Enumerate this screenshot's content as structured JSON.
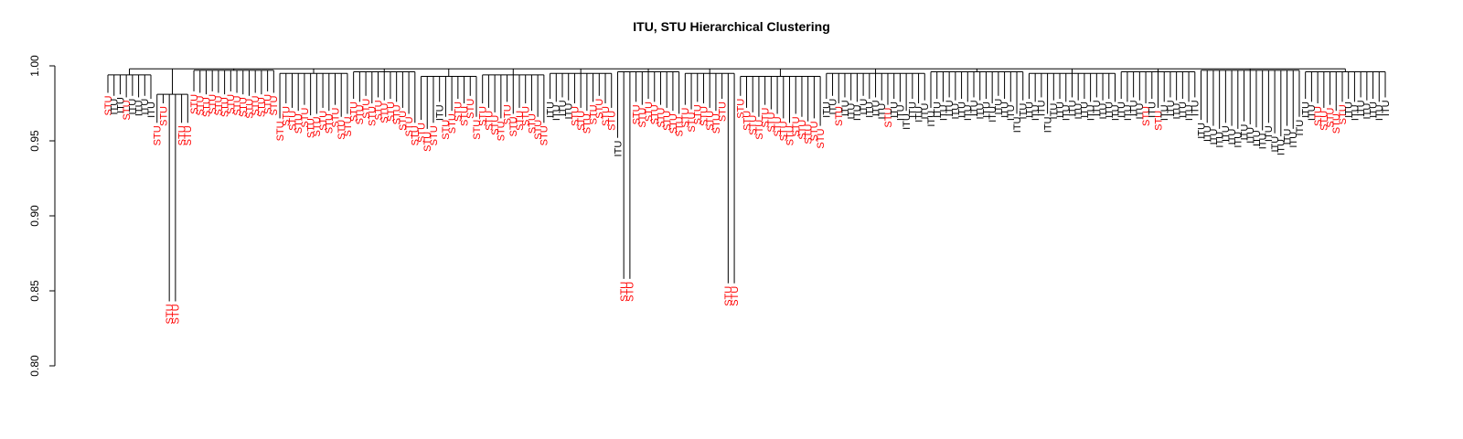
{
  "chart_data": {
    "type": "dendrogram",
    "title": "ITU, STU Hierarchical Clustering",
    "xlabel": "",
    "ylabel": "",
    "ylim": [
      0.8,
      1.0
    ],
    "y_ticks": [
      0.8,
      0.85,
      0.9,
      0.95,
      1.0
    ],
    "y_tick_labels": [
      "0.80",
      "0.85",
      "0.90",
      "0.95",
      "1.00"
    ],
    "root_height": 0.998,
    "label_colors": {
      "STU": "#ff0000",
      "ITU": "#000000"
    },
    "groups": [
      {
        "height": 0.994,
        "leaves": [
          [
            "STU",
            0.982
          ],
          [
            "ITU",
            0.98
          ],
          [
            "ITU",
            0.981
          ],
          [
            "STU",
            0.979
          ],
          [
            "ITU",
            0.98
          ],
          [
            "ITU",
            0.979
          ],
          [
            "ITU",
            0.98
          ],
          [
            "ITU",
            0.978
          ]
        ]
      },
      {
        "height": 0.981,
        "leaves": [
          [
            "STU",
            0.962
          ],
          [
            "STU",
            0.975
          ],
          [
            "STU",
            0.843
          ],
          [
            "STU",
            0.843
          ],
          [
            "STU",
            0.962
          ],
          [
            "STU",
            0.962
          ]
        ]
      },
      {
        "height": 0.997,
        "leaves": [
          [
            "STU",
            0.983
          ],
          [
            "STU",
            0.982
          ],
          [
            "STU",
            0.981
          ],
          [
            "STU",
            0.983
          ],
          [
            "STU",
            0.982
          ],
          [
            "STU",
            0.981
          ],
          [
            "STU",
            0.983
          ],
          [
            "STU",
            0.982
          ],
          [
            "STU",
            0.981
          ],
          [
            "STU",
            0.98
          ],
          [
            "STU",
            0.982
          ],
          [
            "STU",
            0.981
          ],
          [
            "STU",
            0.983
          ],
          [
            "STU",
            0.982
          ]
        ]
      },
      {
        "height": 0.995,
        "leaves": [
          [
            "STU",
            0.965
          ],
          [
            "STU",
            0.975
          ],
          [
            "STU",
            0.972
          ],
          [
            "STU",
            0.97
          ],
          [
            "STU",
            0.974
          ],
          [
            "STU",
            0.967
          ],
          [
            "STU",
            0.968
          ],
          [
            "STU",
            0.972
          ],
          [
            "STU",
            0.97
          ],
          [
            "STU",
            0.974
          ],
          [
            "STU",
            0.966
          ],
          [
            "STU",
            0.968
          ]
        ]
      },
      {
        "height": 0.996,
        "leaves": [
          [
            "STU",
            0.978
          ],
          [
            "STU",
            0.976
          ],
          [
            "STU",
            0.98
          ],
          [
            "STU",
            0.975
          ],
          [
            "STU",
            0.979
          ],
          [
            "STU",
            0.977
          ],
          [
            "STU",
            0.978
          ],
          [
            "STU",
            0.976
          ],
          [
            "STU",
            0.972
          ],
          [
            "STU",
            0.968
          ],
          [
            "STU",
            0.962
          ]
        ]
      },
      {
        "height": 0.993,
        "leaves": [
          [
            "STU",
            0.964
          ],
          [
            "STU",
            0.958
          ],
          [
            "STU",
            0.962
          ],
          [
            "ITU",
            0.976
          ],
          [
            "STU",
            0.966
          ],
          [
            "STU",
            0.97
          ],
          [
            "STU",
            0.978
          ],
          [
            "STU",
            0.975
          ],
          [
            "STU",
            0.98
          ],
          [
            "STU",
            0.966
          ]
        ]
      },
      {
        "height": 0.994,
        "leaves": [
          [
            "STU",
            0.975
          ],
          [
            "STU",
            0.972
          ],
          [
            "STU",
            0.969
          ],
          [
            "STU",
            0.965
          ],
          [
            "STU",
            0.976
          ],
          [
            "STU",
            0.968
          ],
          [
            "STU",
            0.972
          ],
          [
            "STU",
            0.975
          ],
          [
            "STU",
            0.97
          ],
          [
            "STU",
            0.966
          ],
          [
            "STU",
            0.962
          ]
        ]
      },
      {
        "height": 0.995,
        "leaves": [
          [
            "ITU",
            0.978
          ],
          [
            "ITU",
            0.976
          ],
          [
            "ITU",
            0.979
          ],
          [
            "ITU",
            0.977
          ],
          [
            "STU",
            0.975
          ],
          [
            "STU",
            0.972
          ],
          [
            "STU",
            0.97
          ],
          [
            "STU",
            0.976
          ],
          [
            "STU",
            0.98
          ],
          [
            "STU",
            0.975
          ],
          [
            "STU",
            0.972
          ]
        ]
      },
      {
        "height": 0.996,
        "leaves": [
          [
            "ITU",
            0.952
          ],
          [
            "STU",
            0.858
          ],
          [
            "STU",
            0.858
          ],
          [
            "STU",
            0.976
          ],
          [
            "STU",
            0.974
          ],
          [
            "STU",
            0.978
          ],
          [
            "STU",
            0.976
          ],
          [
            "STU",
            0.974
          ],
          [
            "STU",
            0.972
          ],
          [
            "STU",
            0.97
          ],
          [
            "STU",
            0.968
          ]
        ]
      },
      {
        "height": 0.995,
        "leaves": [
          [
            "STU",
            0.974
          ],
          [
            "STU",
            0.971
          ],
          [
            "STU",
            0.976
          ],
          [
            "STU",
            0.975
          ],
          [
            "STU",
            0.972
          ],
          [
            "STU",
            0.97
          ],
          [
            "STU",
            0.978
          ],
          [
            "STU",
            0.855
          ],
          [
            "STU",
            0.855
          ]
        ]
      },
      {
        "height": 0.993,
        "leaves": [
          [
            "STU",
            0.98
          ],
          [
            "STU",
            0.972
          ],
          [
            "STU",
            0.969
          ],
          [
            "STU",
            0.966
          ],
          [
            "STU",
            0.974
          ],
          [
            "STU",
            0.971
          ],
          [
            "STU",
            0.968
          ],
          [
            "STU",
            0.965
          ],
          [
            "STU",
            0.962
          ],
          [
            "STU",
            0.968
          ],
          [
            "STU",
            0.966
          ],
          [
            "STU",
            0.963
          ],
          [
            "STU",
            0.965
          ],
          [
            "STU",
            0.96
          ]
        ]
      },
      {
        "height": 0.995,
        "leaves": [
          [
            "ITU",
            0.978
          ],
          [
            "ITU",
            0.98
          ],
          [
            "STU",
            0.975
          ],
          [
            "ITU",
            0.979
          ],
          [
            "ITU",
            0.977
          ],
          [
            "ITU",
            0.976
          ],
          [
            "ITU",
            0.98
          ],
          [
            "ITU",
            0.978
          ],
          [
            "ITU",
            0.979
          ],
          [
            "ITU",
            0.977
          ],
          [
            "STU",
            0.974
          ],
          [
            "ITU",
            0.978
          ],
          [
            "ITU",
            0.976
          ],
          [
            "ITU",
            0.97
          ],
          [
            "ITU",
            0.978
          ],
          [
            "ITU",
            0.975
          ],
          [
            "ITU",
            0.977
          ]
        ]
      },
      {
        "height": 0.996,
        "leaves": [
          [
            "ITU",
            0.972
          ],
          [
            "ITU",
            0.978
          ],
          [
            "ITU",
            0.976
          ],
          [
            "ITU",
            0.979
          ],
          [
            "ITU",
            0.977
          ],
          [
            "ITU",
            0.978
          ],
          [
            "ITU",
            0.976
          ],
          [
            "ITU",
            0.979
          ],
          [
            "ITU",
            0.977
          ],
          [
            "ITU",
            0.978
          ],
          [
            "ITU",
            0.975
          ],
          [
            "ITU",
            0.98
          ],
          [
            "ITU",
            0.978
          ],
          [
            "ITU",
            0.976
          ],
          [
            "ITU",
            0.968
          ],
          [
            "ITU",
            0.977
          ]
        ]
      },
      {
        "height": 0.995,
        "leaves": [
          [
            "ITU",
            0.978
          ],
          [
            "ITU",
            0.976
          ],
          [
            "ITU",
            0.979
          ],
          [
            "ITU",
            0.968
          ],
          [
            "ITU",
            0.977
          ],
          [
            "ITU",
            0.978
          ],
          [
            "ITU",
            0.976
          ],
          [
            "ITU",
            0.979
          ],
          [
            "ITU",
            0.977
          ],
          [
            "ITU",
            0.978
          ],
          [
            "ITU",
            0.976
          ],
          [
            "ITU",
            0.979
          ],
          [
            "ITU",
            0.977
          ],
          [
            "ITU",
            0.978
          ],
          [
            "ITU",
            0.976
          ]
        ]
      },
      {
        "height": 0.996,
        "leaves": [
          [
            "ITU",
            0.978
          ],
          [
            "ITU",
            0.976
          ],
          [
            "ITU",
            0.979
          ],
          [
            "ITU",
            0.977
          ],
          [
            "STU",
            0.975
          ],
          [
            "ITU",
            0.978
          ],
          [
            "STU",
            0.972
          ],
          [
            "ITU",
            0.976
          ],
          [
            "ITU",
            0.979
          ],
          [
            "ITU",
            0.977
          ],
          [
            "ITU",
            0.978
          ],
          [
            "ITU",
            0.976
          ],
          [
            "ITU",
            0.979
          ]
        ]
      },
      {
        "height": 0.997,
        "leaves": [
          [
            "ITU",
            0.964
          ],
          [
            "ITU",
            0.962
          ],
          [
            "ITU",
            0.96
          ],
          [
            "ITU",
            0.958
          ],
          [
            "ITU",
            0.962
          ],
          [
            "ITU",
            0.96
          ],
          [
            "ITU",
            0.958
          ],
          [
            "ITU",
            0.963
          ],
          [
            "ITU",
            0.961
          ],
          [
            "ITU",
            0.959
          ],
          [
            "ITU",
            0.957
          ],
          [
            "ITU",
            0.962
          ],
          [
            "ITU",
            0.955
          ],
          [
            "ITU",
            0.953
          ],
          [
            "ITU",
            0.96
          ],
          [
            "ITU",
            0.958
          ],
          [
            "ITU",
            0.966
          ]
        ]
      },
      {
        "height": 0.996,
        "leaves": [
          [
            "ITU",
            0.978
          ],
          [
            "ITU",
            0.976
          ],
          [
            "STU",
            0.975
          ],
          [
            "STU",
            0.972
          ],
          [
            "STU",
            0.974
          ],
          [
            "STU",
            0.97
          ],
          [
            "STU",
            0.976
          ],
          [
            "ITU",
            0.978
          ],
          [
            "ITU",
            0.976
          ],
          [
            "ITU",
            0.979
          ],
          [
            "ITU",
            0.977
          ],
          [
            "ITU",
            0.978
          ],
          [
            "ITU",
            0.976
          ],
          [
            "ITU",
            0.979
          ]
        ]
      }
    ]
  }
}
